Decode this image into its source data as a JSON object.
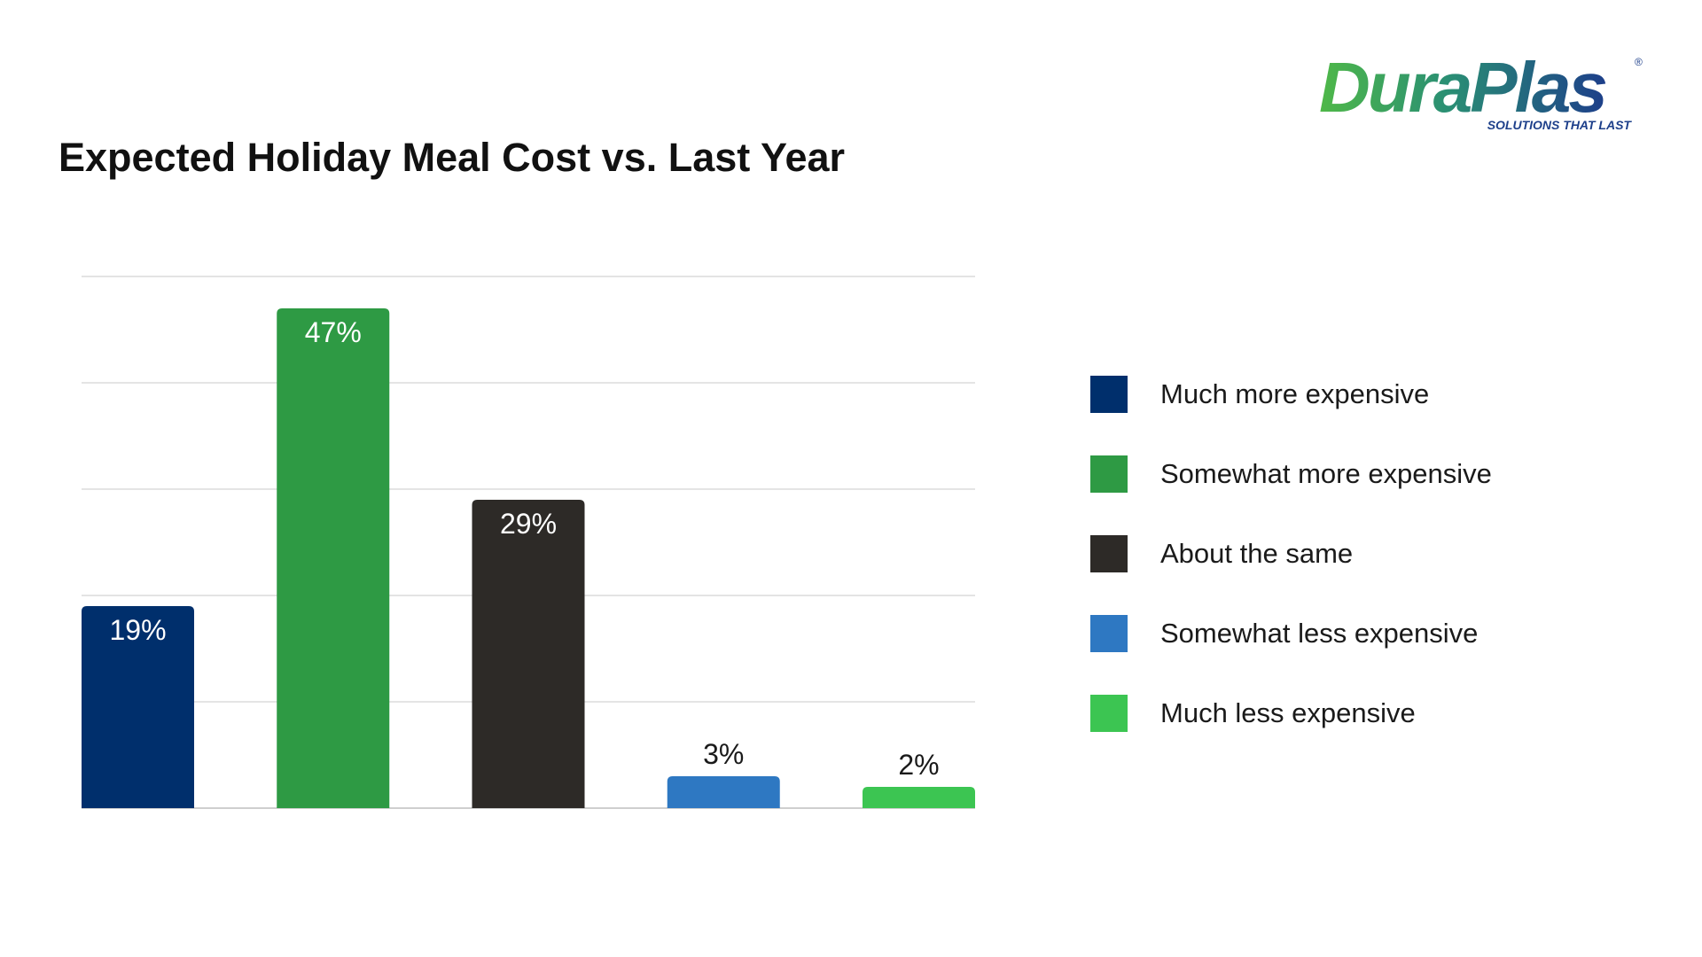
{
  "logo": {
    "brand_part1": "Dura",
    "brand_part2": "Plas",
    "registered": "®",
    "tagline": "SOLUTIONS THAT LAST"
  },
  "chart_data": {
    "type": "bar",
    "title": "Expected Holiday Meal Cost vs. Last Year",
    "categories": [
      "Much more expensive",
      "Somewhat more expensive",
      "About the same",
      "Somewhat less expensive",
      "Much less expensive"
    ],
    "values": [
      19,
      47,
      29,
      3,
      2
    ],
    "value_labels": [
      "19%",
      "47%",
      "29%",
      "3%",
      "2%"
    ],
    "colors": [
      "#002f6c",
      "#2e9a44",
      "#2d2a27",
      "#2e78c2",
      "#3cc552"
    ],
    "label_colors": [
      "#ffffff",
      "#ffffff",
      "#ffffff",
      "#1a1a1a",
      "#1a1a1a"
    ],
    "label_inside": [
      true,
      true,
      true,
      false,
      false
    ],
    "xlabel": "",
    "ylabel": "",
    "ylim": [
      0,
      50
    ],
    "grid_step": 10,
    "grid": true,
    "legend_position": "right"
  }
}
